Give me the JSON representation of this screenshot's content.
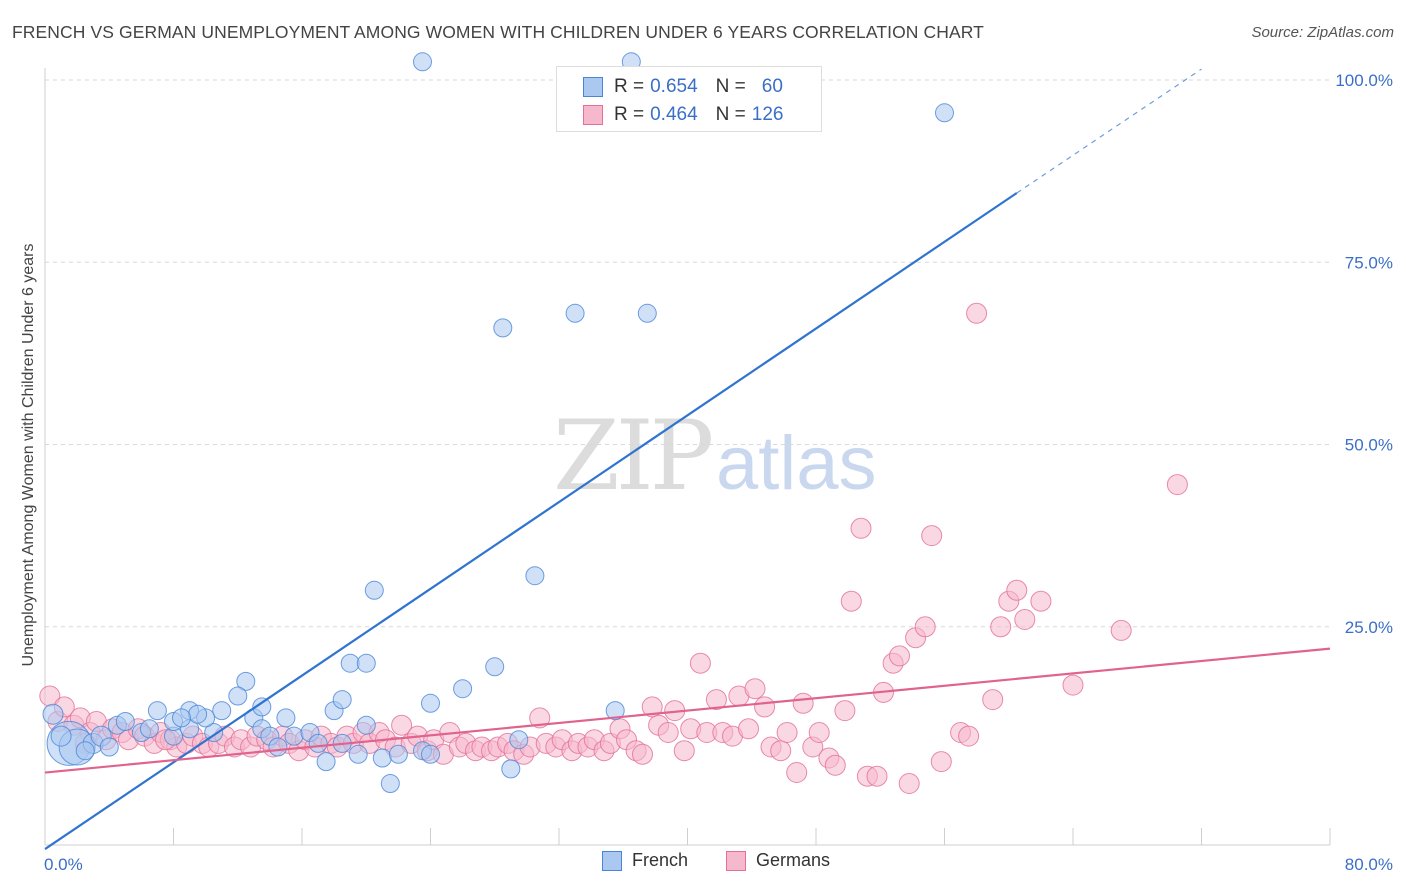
{
  "title": "FRENCH VS GERMAN UNEMPLOYMENT AMONG WOMEN WITH CHILDREN UNDER 6 YEARS CORRELATION CHART",
  "source": "Source: ZipAtlas.com",
  "watermark": {
    "zip": "ZIP",
    "atlas": "atlas"
  },
  "colors": {
    "french": "#4a86d8",
    "french_fill": "#aac8f0",
    "germans": "#e46f97",
    "germans_fill": "#f5b8cc",
    "axis_text": "#3b6fc7",
    "grid": "#d8d8d8"
  },
  "legend_top": {
    "french": {
      "r_label": "R = ",
      "r_value": "0.654",
      "n_label": "N = ",
      "n_value": "60"
    },
    "germans": {
      "r_label": "R = ",
      "r_value": "0.464",
      "n_label": "N = ",
      "n_value": "126"
    }
  },
  "legend_bottom": {
    "french": "French",
    "germans": "Germans"
  },
  "chart_data": {
    "type": "scatter",
    "title": "FRENCH VS GERMAN UNEMPLOYMENT AMONG WOMEN WITH CHILDREN UNDER 6 YEARS CORRELATION CHART",
    "xlabel": "",
    "ylabel": "Unemployment Among Women with Children Under 6 years",
    "xlim": [
      0,
      80
    ],
    "ylim": [
      0,
      100
    ],
    "x_tick_labels": [
      "0.0%",
      "80.0%"
    ],
    "y_tick_labels": [
      "25.0%",
      "50.0%",
      "75.0%",
      "100.0%"
    ],
    "y_ticks": [
      25,
      50,
      75,
      100
    ],
    "grid": true,
    "legend_placement": "top-center",
    "series": [
      {
        "name": "French",
        "r": 0.654,
        "n": 60,
        "trend": {
          "x0": 0,
          "y0": -5.5,
          "x1": 60.5,
          "y1": 84.5,
          "dashed_to": {
            "x": 72,
            "y": 101.5
          }
        },
        "points": [
          [
            1.5,
            9.0,
            22
          ],
          [
            2.0,
            8.5,
            18
          ],
          [
            0.5,
            13.0,
            10
          ],
          [
            1.0,
            10.0,
            10
          ],
          [
            3.0,
            9.0,
            10
          ],
          [
            3.5,
            10.0,
            10
          ],
          [
            4.5,
            11.5,
            9
          ],
          [
            5.0,
            12.0,
            9
          ],
          [
            6.0,
            10.5,
            9
          ],
          [
            6.5,
            11.0,
            9
          ],
          [
            7.0,
            13.5,
            9
          ],
          [
            8.0,
            10.0,
            9
          ],
          [
            8.0,
            12.0,
            9
          ],
          [
            9.0,
            13.5,
            9
          ],
          [
            9.0,
            11.0,
            9
          ],
          [
            10.5,
            10.5,
            9
          ],
          [
            11.0,
            13.5,
            9
          ],
          [
            10.0,
            12.5,
            9
          ],
          [
            9.5,
            13.0,
            9
          ],
          [
            8.5,
            12.5,
            9
          ],
          [
            12.5,
            17.5,
            9
          ],
          [
            12.0,
            15.5,
            9
          ],
          [
            13.0,
            12.5,
            9
          ],
          [
            13.5,
            14.0,
            9
          ],
          [
            13.5,
            11.0,
            9
          ],
          [
            15.0,
            12.5,
            9
          ],
          [
            14.0,
            10.0,
            9
          ],
          [
            15.5,
            10.0,
            9
          ],
          [
            14.5,
            8.5,
            9
          ],
          [
            16.5,
            10.5,
            9
          ],
          [
            17.0,
            9.0,
            9
          ],
          [
            17.5,
            6.5,
            9
          ],
          [
            18.0,
            13.5,
            9
          ],
          [
            18.5,
            9.0,
            9
          ],
          [
            18.5,
            15.0,
            9
          ],
          [
            19.5,
            7.5,
            9
          ],
          [
            19.0,
            20.0,
            9
          ],
          [
            20.0,
            20.0,
            9
          ],
          [
            20.0,
            11.5,
            9
          ],
          [
            20.5,
            30.0,
            9
          ],
          [
            21.0,
            7.0,
            9
          ],
          [
            21.5,
            3.5,
            9
          ],
          [
            22.0,
            7.5,
            9
          ],
          [
            23.5,
            8.0,
            9
          ],
          [
            24.0,
            14.5,
            9
          ],
          [
            24.0,
            7.5,
            9
          ],
          [
            26.0,
            16.5,
            9
          ],
          [
            28.0,
            19.5,
            9
          ],
          [
            29.0,
            5.5,
            9
          ],
          [
            29.5,
            9.5,
            9
          ],
          [
            30.5,
            32.0,
            9
          ],
          [
            28.5,
            66.0,
            9
          ],
          [
            33.0,
            68.0,
            9
          ],
          [
            37.5,
            68.0,
            9
          ],
          [
            35.5,
            13.5,
            9
          ],
          [
            23.5,
            102.5,
            9
          ],
          [
            36.5,
            102.5,
            9
          ],
          [
            56.0,
            95.5,
            9
          ],
          [
            4.0,
            8.5,
            9
          ],
          [
            2.5,
            8.0,
            9
          ]
        ]
      },
      {
        "name": "Germans",
        "r": 0.464,
        "n": 126,
        "trend": {
          "x0": 0,
          "y0": 5.0,
          "x1": 80,
          "y1": 22.0
        },
        "points": [
          [
            0.3,
            15.5,
            10
          ],
          [
            0.8,
            12.0,
            10
          ],
          [
            1.2,
            14.0,
            10
          ],
          [
            1.8,
            11.5,
            10
          ],
          [
            2.2,
            12.5,
            10
          ],
          [
            2.8,
            10.5,
            10
          ],
          [
            3.2,
            12.0,
            10
          ],
          [
            3.8,
            9.5,
            10
          ],
          [
            4.2,
            11.0,
            10
          ],
          [
            4.8,
            10.5,
            10
          ],
          [
            5.2,
            9.5,
            10
          ],
          [
            5.8,
            11.0,
            10
          ],
          [
            6.2,
            10.0,
            10
          ],
          [
            6.8,
            9.0,
            10
          ],
          [
            7.2,
            10.5,
            10
          ],
          [
            7.8,
            9.5,
            10
          ],
          [
            8.2,
            8.5,
            10
          ],
          [
            8.8,
            9.0,
            10
          ],
          [
            9.2,
            10.0,
            10
          ],
          [
            9.8,
            9.0,
            10
          ],
          [
            10.2,
            8.5,
            10
          ],
          [
            10.8,
            9.0,
            10
          ],
          [
            11.2,
            10.0,
            10
          ],
          [
            11.8,
            8.5,
            10
          ],
          [
            12.2,
            9.5,
            10
          ],
          [
            12.8,
            8.5,
            10
          ],
          [
            13.2,
            10.0,
            10
          ],
          [
            13.8,
            9.5,
            10
          ],
          [
            14.2,
            8.5,
            10
          ],
          [
            14.8,
            10.0,
            10
          ],
          [
            15.2,
            9.0,
            10
          ],
          [
            15.8,
            8.0,
            10
          ],
          [
            16.2,
            9.5,
            10
          ],
          [
            16.8,
            8.5,
            10
          ],
          [
            17.2,
            10.0,
            10
          ],
          [
            17.8,
            9.0,
            10
          ],
          [
            18.2,
            8.5,
            10
          ],
          [
            18.8,
            10.0,
            10
          ],
          [
            19.2,
            9.0,
            10
          ],
          [
            19.8,
            10.5,
            10
          ],
          [
            20.2,
            9.0,
            10
          ],
          [
            20.8,
            10.5,
            10
          ],
          [
            21.2,
            9.5,
            10
          ],
          [
            21.8,
            8.5,
            10
          ],
          [
            22.2,
            11.5,
            10
          ],
          [
            22.8,
            9.0,
            10
          ],
          [
            23.2,
            10.0,
            10
          ],
          [
            23.8,
            8.0,
            10
          ],
          [
            24.2,
            9.5,
            10
          ],
          [
            24.8,
            7.5,
            10
          ],
          [
            25.2,
            10.5,
            10
          ],
          [
            25.8,
            8.5,
            10
          ],
          [
            26.2,
            9.0,
            10
          ],
          [
            26.8,
            8.0,
            10
          ],
          [
            27.2,
            8.5,
            10
          ],
          [
            27.8,
            8.0,
            10
          ],
          [
            28.2,
            8.5,
            10
          ],
          [
            28.8,
            9.0,
            10
          ],
          [
            29.2,
            8.0,
            10
          ],
          [
            29.8,
            7.5,
            10
          ],
          [
            30.2,
            8.5,
            10
          ],
          [
            30.8,
            12.5,
            10
          ],
          [
            31.2,
            9.0,
            10
          ],
          [
            31.8,
            8.5,
            10
          ],
          [
            32.2,
            9.5,
            10
          ],
          [
            32.8,
            8.0,
            10
          ],
          [
            33.2,
            9.0,
            10
          ],
          [
            33.8,
            8.5,
            10
          ],
          [
            34.2,
            9.5,
            10
          ],
          [
            34.8,
            8.0,
            10
          ],
          [
            35.2,
            9.0,
            10
          ],
          [
            35.8,
            11.0,
            10
          ],
          [
            36.2,
            9.5,
            10
          ],
          [
            36.8,
            8.0,
            10
          ],
          [
            37.2,
            7.5,
            10
          ],
          [
            37.8,
            14.0,
            10
          ],
          [
            38.2,
            11.5,
            10
          ],
          [
            38.8,
            10.5,
            10
          ],
          [
            39.2,
            13.5,
            10
          ],
          [
            39.8,
            8.0,
            10
          ],
          [
            40.2,
            11.0,
            10
          ],
          [
            40.8,
            20.0,
            10
          ],
          [
            41.2,
            10.5,
            10
          ],
          [
            41.8,
            15.0,
            10
          ],
          [
            42.2,
            10.5,
            10
          ],
          [
            42.8,
            10.0,
            10
          ],
          [
            43.2,
            15.5,
            10
          ],
          [
            43.8,
            11.0,
            10
          ],
          [
            44.2,
            16.5,
            10
          ],
          [
            44.8,
            14.0,
            10
          ],
          [
            45.2,
            8.5,
            10
          ],
          [
            45.8,
            8.0,
            10
          ],
          [
            46.2,
            10.5,
            10
          ],
          [
            46.8,
            5.0,
            10
          ],
          [
            47.2,
            14.5,
            10
          ],
          [
            47.8,
            8.5,
            10
          ],
          [
            48.2,
            10.5,
            10
          ],
          [
            48.8,
            7.0,
            10
          ],
          [
            49.2,
            6.0,
            10
          ],
          [
            49.8,
            13.5,
            10
          ],
          [
            50.2,
            28.5,
            10
          ],
          [
            50.8,
            38.5,
            10
          ],
          [
            51.2,
            4.5,
            10
          ],
          [
            51.8,
            4.5,
            10
          ],
          [
            52.2,
            16.0,
            10
          ],
          [
            52.8,
            20.0,
            10
          ],
          [
            53.2,
            21.0,
            10
          ],
          [
            53.8,
            3.5,
            10
          ],
          [
            54.2,
            23.5,
            10
          ],
          [
            54.8,
            25.0,
            10
          ],
          [
            55.2,
            37.5,
            10
          ],
          [
            55.8,
            6.5,
            10
          ],
          [
            57.0,
            10.5,
            10
          ],
          [
            57.5,
            10.0,
            10
          ],
          [
            58.0,
            68.0,
            10
          ],
          [
            59.0,
            15.0,
            10
          ],
          [
            59.5,
            25.0,
            10
          ],
          [
            60.0,
            28.5,
            10
          ],
          [
            60.5,
            30.0,
            10
          ],
          [
            61.0,
            26.0,
            10
          ],
          [
            62.0,
            28.5,
            10
          ],
          [
            64.0,
            17.0,
            10
          ],
          [
            67.0,
            24.5,
            10
          ],
          [
            70.5,
            44.5,
            10
          ],
          [
            7.5,
            9.5,
            10
          ],
          [
            2.5,
            9.0,
            10
          ]
        ]
      }
    ]
  }
}
